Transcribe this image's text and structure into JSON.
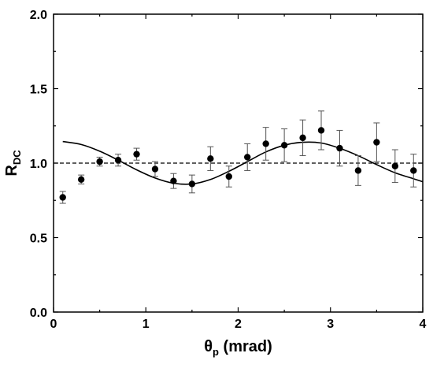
{
  "chart_data": {
    "type": "scatter",
    "title": "",
    "xlabel": {
      "main": "θ",
      "sub": "p",
      "suffix": " (mrad)"
    },
    "ylabel": {
      "main": "R",
      "sub": "DC"
    },
    "xlim": [
      0,
      4
    ],
    "ylim": [
      0,
      2
    ],
    "x_ticks": [
      0,
      1,
      2,
      3,
      4
    ],
    "y_ticks": [
      0.0,
      0.5,
      1.0,
      1.5,
      2.0
    ],
    "x_tick_labels": [
      "0",
      "1",
      "2",
      "3",
      "4"
    ],
    "y_tick_labels": [
      "0.0",
      "0.5",
      "1.0",
      "1.5",
      "2.0"
    ],
    "grid": false,
    "reference_line": {
      "y": 1.0,
      "style": "dashed"
    },
    "series": [
      {
        "kind": "points_with_error_bars",
        "x": [
          0.1,
          0.3,
          0.5,
          0.7,
          0.9,
          1.1,
          1.3,
          1.5,
          1.7,
          1.9,
          2.1,
          2.3,
          2.5,
          2.7,
          2.9,
          3.1,
          3.3,
          3.5,
          3.7,
          3.9
        ],
        "y": [
          0.77,
          0.89,
          1.01,
          1.02,
          1.06,
          0.96,
          0.88,
          0.86,
          1.03,
          0.91,
          1.04,
          1.13,
          1.12,
          1.17,
          1.22,
          1.1,
          0.95,
          1.14,
          0.98,
          0.95
        ],
        "yerr": [
          0.04,
          0.03,
          0.03,
          0.04,
          0.04,
          0.05,
          0.05,
          0.06,
          0.08,
          0.07,
          0.09,
          0.11,
          0.11,
          0.12,
          0.13,
          0.12,
          0.1,
          0.13,
          0.11,
          0.11
        ]
      },
      {
        "kind": "fit_curve",
        "x": [
          0.1,
          0.3,
          0.5,
          0.7,
          0.9,
          1.1,
          1.3,
          1.5,
          1.7,
          1.9,
          2.1,
          2.3,
          2.5,
          2.7,
          2.9,
          3.1,
          3.3,
          3.5,
          3.7,
          3.9,
          4.0
        ],
        "y": [
          1.145,
          1.125,
          1.08,
          1.02,
          0.955,
          0.9,
          0.865,
          0.86,
          0.89,
          0.945,
          1.01,
          1.075,
          1.12,
          1.14,
          1.135,
          1.1,
          1.05,
          0.99,
          0.935,
          0.895,
          0.875
        ]
      }
    ]
  }
}
